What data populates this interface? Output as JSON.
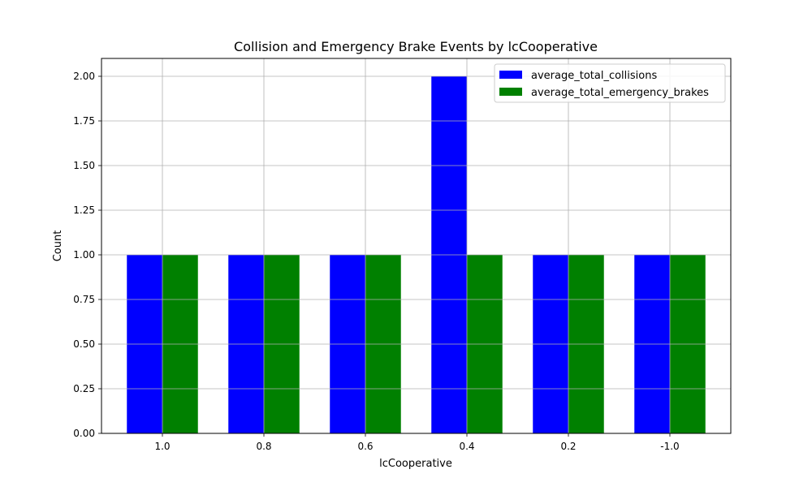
{
  "chart_data": {
    "type": "bar",
    "title": "Collision and Emergency Brake Events by lcCooperative",
    "xlabel": "lcCooperative",
    "ylabel": "Count",
    "categories": [
      "1.0",
      "0.8",
      "0.6",
      "0.4",
      "0.2",
      "-1.0"
    ],
    "series": [
      {
        "name": "average_total_collisions",
        "color": "#0000ff",
        "values": [
          1,
          1,
          1,
          2,
          1,
          1
        ]
      },
      {
        "name": "average_total_emergency_brakes",
        "color": "#008000",
        "values": [
          1,
          1,
          1,
          1,
          1,
          1
        ]
      }
    ],
    "ylim": [
      0,
      2.1
    ],
    "yticks": [
      "0.00",
      "0.25",
      "0.50",
      "0.75",
      "1.00",
      "1.25",
      "1.50",
      "1.75",
      "2.00"
    ],
    "grid": true,
    "legend_position": "top-right"
  }
}
